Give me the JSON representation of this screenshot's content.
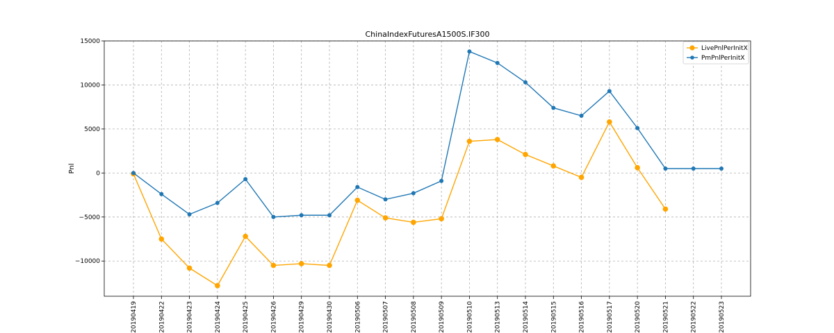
{
  "chart_data": {
    "type": "line",
    "title": "ChinaIndexFuturesA1500S.IF300",
    "xlabel": "",
    "ylabel": "Pnl",
    "categories": [
      "20190419",
      "20190422",
      "20190423",
      "20190424",
      "20190425",
      "20190426",
      "20190429",
      "20190430",
      "20190506",
      "20190507",
      "20190508",
      "20190509",
      "20190510",
      "20190513",
      "20190514",
      "20190515",
      "20190516",
      "20190517",
      "20190520",
      "20190521",
      "20190522",
      "20190523"
    ],
    "ylim": [
      -14000,
      15000
    ],
    "yticks": [
      -10000,
      -5000,
      0,
      5000,
      10000,
      15000
    ],
    "ytick_labels": [
      "−10000",
      "−5000",
      "0",
      "5000",
      "10000",
      "15000"
    ],
    "grid": true,
    "legend_position": "top-right",
    "series": [
      {
        "name": "LivePnlPerInitX",
        "color": "#ffa500",
        "marker_size": "large",
        "values": [
          -100,
          -7500,
          -10800,
          -12800,
          -7200,
          -10500,
          -10300,
          -10500,
          -3100,
          -5100,
          -5600,
          -5200,
          3600,
          3800,
          2100,
          800,
          -500,
          5800,
          600,
          -4100,
          null,
          null
        ]
      },
      {
        "name": "PmPnlPerInitX",
        "color": "#1f77b4",
        "marker_size": "small",
        "values": [
          0,
          -2400,
          -4700,
          -3400,
          -700,
          -5000,
          -4800,
          -4800,
          -1600,
          -3000,
          -2300,
          -900,
          13800,
          12500,
          10300,
          7400,
          6500,
          9300,
          5100,
          500,
          500,
          500
        ]
      }
    ]
  }
}
